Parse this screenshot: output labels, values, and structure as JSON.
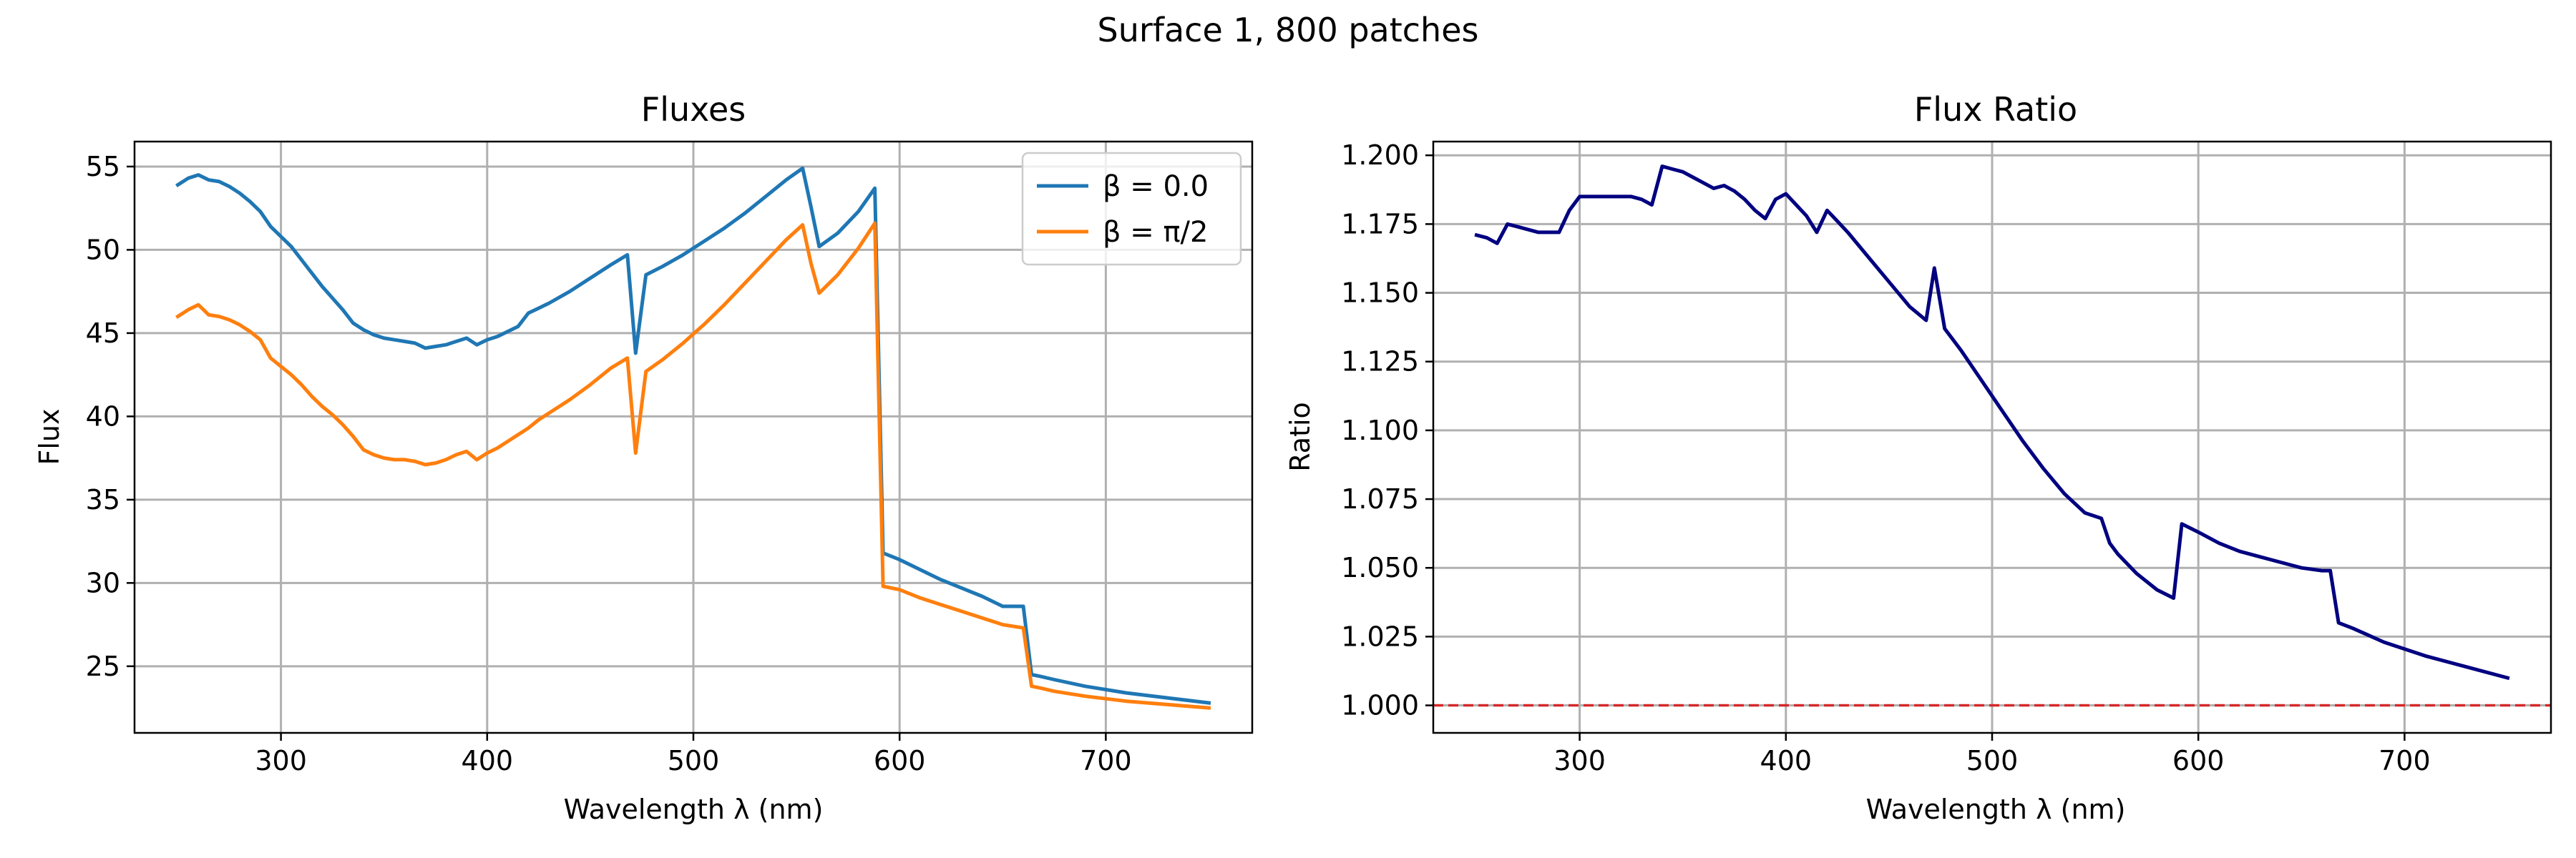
{
  "figure": {
    "suptitle": "Surface 1, 800 patches"
  },
  "chart_data": [
    {
      "type": "line",
      "title": "Fluxes",
      "xlabel": "Wavelength λ (nm)",
      "ylabel": "Flux",
      "xlim": [
        229,
        771
      ],
      "ylim": [
        21,
        56.5
      ],
      "xticks": [
        300,
        400,
        500,
        600,
        700
      ],
      "yticks": [
        25,
        30,
        35,
        40,
        45,
        50,
        55
      ],
      "grid": true,
      "legend": "top-right",
      "series": [
        {
          "name": "β = 0.0",
          "color": "#1f77b4",
          "x": [
            250,
            255,
            260,
            265,
            270,
            275,
            280,
            285,
            290,
            295,
            300,
            305,
            310,
            315,
            320,
            325,
            330,
            335,
            340,
            345,
            350,
            355,
            360,
            365,
            370,
            375,
            380,
            385,
            390,
            395,
            400,
            405,
            410,
            415,
            420,
            425,
            430,
            440,
            450,
            460,
            468,
            472,
            477,
            485,
            495,
            505,
            515,
            525,
            535,
            545,
            553,
            557,
            561,
            570,
            580,
            588,
            592,
            600,
            610,
            620,
            630,
            640,
            650,
            660,
            664,
            668,
            675,
            690,
            710,
            730,
            750
          ],
          "y": [
            53.9,
            54.3,
            54.5,
            54.2,
            54.1,
            53.8,
            53.4,
            52.9,
            52.3,
            51.4,
            50.8,
            50.2,
            49.4,
            48.6,
            47.8,
            47.1,
            46.4,
            45.6,
            45.2,
            44.9,
            44.7,
            44.6,
            44.5,
            44.4,
            44.1,
            44.2,
            44.3,
            44.5,
            44.7,
            44.3,
            44.6,
            44.8,
            45.1,
            45.4,
            46.2,
            46.5,
            46.8,
            47.5,
            48.3,
            49.1,
            49.7,
            43.8,
            48.5,
            49.0,
            49.7,
            50.5,
            51.3,
            52.2,
            53.2,
            54.2,
            54.9,
            52.6,
            50.2,
            51.0,
            52.3,
            53.7,
            31.8,
            31.4,
            30.8,
            30.2,
            29.7,
            29.2,
            28.6,
            28.6,
            24.5,
            24.4,
            24.2,
            23.8,
            23.4,
            23.1,
            22.8
          ]
        },
        {
          "name": "β = π/2",
          "color": "#ff7f0e",
          "x": [
            250,
            255,
            260,
            265,
            270,
            275,
            280,
            285,
            290,
            295,
            300,
            305,
            310,
            315,
            320,
            325,
            330,
            335,
            340,
            345,
            350,
            355,
            360,
            365,
            370,
            375,
            380,
            385,
            390,
            395,
            400,
            405,
            410,
            415,
            420,
            425,
            430,
            440,
            450,
            460,
            468,
            472,
            477,
            485,
            495,
            505,
            515,
            525,
            535,
            545,
            553,
            557,
            561,
            570,
            580,
            588,
            592,
            600,
            610,
            620,
            630,
            640,
            650,
            660,
            664,
            668,
            675,
            690,
            710,
            730,
            750
          ],
          "y": [
            46.0,
            46.4,
            46.7,
            46.1,
            46.0,
            45.8,
            45.5,
            45.1,
            44.6,
            43.5,
            43.0,
            42.5,
            41.9,
            41.2,
            40.6,
            40.1,
            39.5,
            38.8,
            38.0,
            37.7,
            37.5,
            37.4,
            37.4,
            37.3,
            37.1,
            37.2,
            37.4,
            37.7,
            37.9,
            37.4,
            37.8,
            38.1,
            38.5,
            38.9,
            39.3,
            39.8,
            40.2,
            41.0,
            41.9,
            42.9,
            43.5,
            37.8,
            42.7,
            43.4,
            44.4,
            45.5,
            46.7,
            48.0,
            49.3,
            50.6,
            51.5,
            49.2,
            47.4,
            48.5,
            50.1,
            51.6,
            29.8,
            29.6,
            29.1,
            28.7,
            28.3,
            27.9,
            27.5,
            27.3,
            23.8,
            23.7,
            23.5,
            23.2,
            22.9,
            22.7,
            22.5
          ]
        }
      ]
    },
    {
      "type": "line",
      "title": "Flux Ratio",
      "xlabel": "Wavelength λ (nm)",
      "ylabel": "Ratio",
      "xlim": [
        229,
        771
      ],
      "ylim": [
        0.99,
        1.205
      ],
      "xticks": [
        300,
        400,
        500,
        600,
        700
      ],
      "yticks": [
        1.0,
        1.025,
        1.05,
        1.075,
        1.1,
        1.125,
        1.15,
        1.175,
        1.2
      ],
      "ytick_labels": [
        "1.000",
        "1.025",
        "1.050",
        "1.075",
        "1.100",
        "1.125",
        "1.150",
        "1.175",
        "1.200"
      ],
      "grid": true,
      "reference_line": {
        "y": 1.0,
        "color": "#d62728",
        "style": "dashed"
      },
      "series": [
        {
          "color": "#000080",
          "x": [
            250,
            255,
            260,
            265,
            270,
            275,
            280,
            285,
            290,
            295,
            300,
            305,
            310,
            315,
            320,
            325,
            330,
            335,
            340,
            345,
            350,
            355,
            360,
            365,
            370,
            375,
            380,
            385,
            390,
            395,
            400,
            405,
            410,
            415,
            420,
            425,
            430,
            440,
            450,
            460,
            468,
            472,
            477,
            485,
            495,
            505,
            515,
            525,
            535,
            545,
            553,
            557,
            561,
            570,
            580,
            588,
            592,
            600,
            610,
            620,
            630,
            640,
            650,
            660,
            664,
            668,
            675,
            690,
            710,
            730,
            750
          ],
          "y": [
            1.171,
            1.17,
            1.168,
            1.175,
            1.174,
            1.173,
            1.172,
            1.172,
            1.172,
            1.18,
            1.185,
            1.185,
            1.185,
            1.185,
            1.185,
            1.185,
            1.184,
            1.182,
            1.196,
            1.195,
            1.194,
            1.192,
            1.19,
            1.188,
            1.189,
            1.187,
            1.184,
            1.18,
            1.177,
            1.184,
            1.186,
            1.182,
            1.178,
            1.172,
            1.18,
            1.176,
            1.172,
            1.163,
            1.154,
            1.145,
            1.14,
            1.159,
            1.137,
            1.129,
            1.118,
            1.107,
            1.096,
            1.086,
            1.077,
            1.07,
            1.068,
            1.059,
            1.055,
            1.048,
            1.042,
            1.039,
            1.066,
            1.063,
            1.059,
            1.056,
            1.054,
            1.052,
            1.05,
            1.049,
            1.049,
            1.03,
            1.028,
            1.023,
            1.018,
            1.014,
            1.01
          ]
        }
      ]
    }
  ]
}
